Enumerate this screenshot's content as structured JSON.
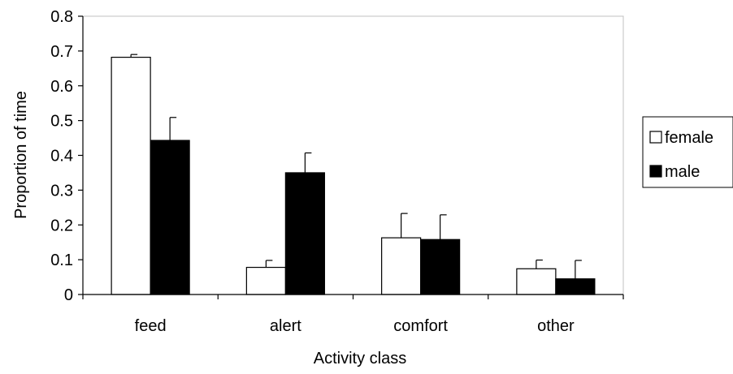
{
  "chart_data": {
    "type": "bar",
    "title": "",
    "xlabel": "Activity class",
    "ylabel": "Proportion of time",
    "ylim": [
      0,
      0.8
    ],
    "yticks": [
      "0",
      "0.1",
      "0.2",
      "0.3",
      "0.4",
      "0.5",
      "0.6",
      "0.7",
      "0.8"
    ],
    "categories": [
      "feed",
      "alert",
      "comfort",
      "other"
    ],
    "series": [
      {
        "name": "female",
        "values": [
          0.682,
          0.078,
          0.163,
          0.074
        ],
        "errors": [
          0.008,
          0.02,
          0.07,
          0.025
        ],
        "color": "#ffffff"
      },
      {
        "name": "male",
        "values": [
          0.443,
          0.35,
          0.158,
          0.045
        ],
        "errors": [
          0.066,
          0.057,
          0.071,
          0.053
        ],
        "color": "#000000"
      }
    ],
    "grid": false,
    "legend": "right",
    "plot_area_border": "#c0c0c0"
  }
}
